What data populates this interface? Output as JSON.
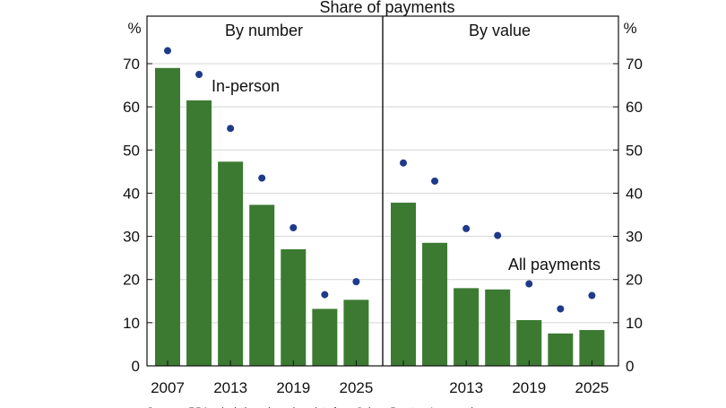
{
  "chart_data": {
    "title": "Share of payments",
    "type": "bar",
    "unit": "%",
    "ylim": [
      0,
      80
    ],
    "yticks": [
      0,
      10,
      20,
      30,
      40,
      50,
      60,
      70
    ],
    "grid": true,
    "colors": {
      "bar": "#3c7a32",
      "dot": "#1f3a8a",
      "annotation_inperson": "#2e4e9e",
      "annotation_all": "#3c8a2e"
    },
    "panels": [
      {
        "title": "By number",
        "x_labels": [
          "2007",
          "2013",
          "2019",
          "2025"
        ],
        "series": [
          {
            "name": "All payments",
            "kind": "bar",
            "values": [
              69,
              61.5,
              47.3,
              37.3,
              27.0,
              13.2,
              15.3
            ]
          },
          {
            "name": "In-person",
            "kind": "dot",
            "values": [
              73,
              67.5,
              55.0,
              43.5,
              32.0,
              16.5,
              19.5
            ]
          }
        ]
      },
      {
        "title": "By value",
        "x_labels": [
          "",
          "2013",
          "2019",
          "2025"
        ],
        "series": [
          {
            "name": "All payments",
            "kind": "bar",
            "values": [
              37.8,
              28.5,
              18.0,
              17.7,
              10.6,
              7.5,
              8.3
            ]
          },
          {
            "name": "In-person",
            "kind": "dot",
            "values": [
              47.0,
              42.8,
              31.8,
              30.2,
              19.0,
              13.2,
              16.3
            ]
          }
        ]
      }
    ],
    "annotations": [
      {
        "panel": 0,
        "text": "In-person"
      },
      {
        "panel": 1,
        "text": "All payments"
      }
    ],
    "source": "Sources: RBA calculations, based on data from Colmar Brunton, Ipsos and"
  }
}
